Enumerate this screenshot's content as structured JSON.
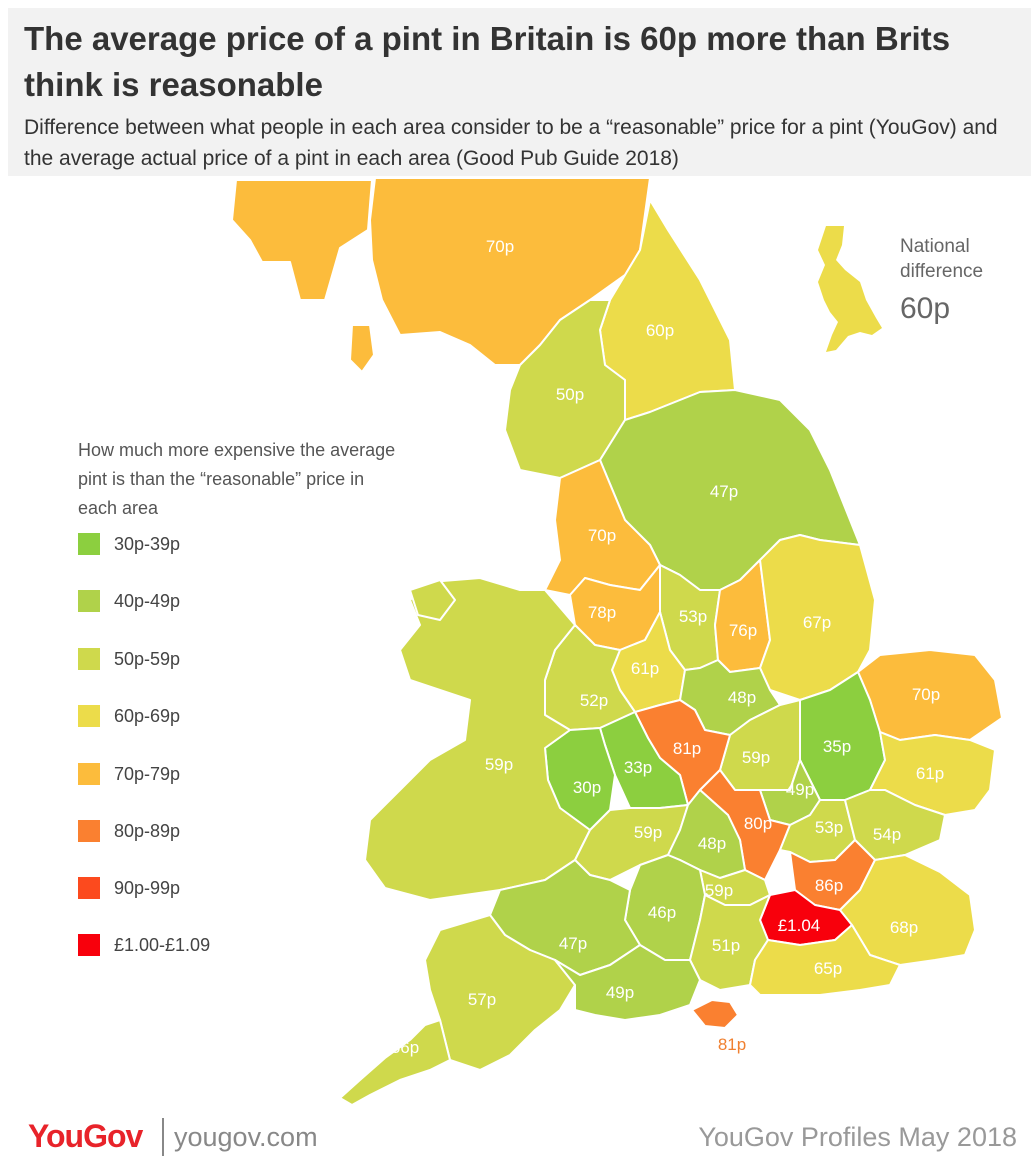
{
  "header": {
    "title": "The average price of a pint in Britain is 60p more than Brits think is reasonable",
    "subtitle": "Difference between what people in each area consider to be a “reasonable” price for a pint (YouGov) and the average actual price of a pint in each area (Good Pub Guide 2018)"
  },
  "national": {
    "label": "National difference",
    "value": "60p"
  },
  "legend": {
    "title": "How much more expensive the average pint is than the “reasonable” price in each area",
    "items": [
      {
        "label": "30p-39p",
        "color": "#8ccf3f"
      },
      {
        "label": "40p-49p",
        "color": "#b0d24a"
      },
      {
        "label": "50p-59p",
        "color": "#cfd94c"
      },
      {
        "label": "60p-69p",
        "color": "#ecdc4a"
      },
      {
        "label": "70p-79p",
        "color": "#fcbc3c"
      },
      {
        "label": "80p-89p",
        "color": "#fa8030"
      },
      {
        "label": "90p-99p",
        "color": "#fc4a1e"
      },
      {
        "label": "£1.00-£1.09",
        "color": "#f8000c"
      }
    ]
  },
  "regions": [
    {
      "label": "70p",
      "band": 4
    },
    {
      "label": "60p",
      "band": 3
    },
    {
      "label": "50p",
      "band": 2
    },
    {
      "label": "47p",
      "band": 1
    },
    {
      "label": "70p",
      "band": 4
    },
    {
      "label": "78p",
      "band": 4
    },
    {
      "label": "53p",
      "band": 2
    },
    {
      "label": "76p",
      "band": 4
    },
    {
      "label": "67p",
      "band": 3
    },
    {
      "label": "61p",
      "band": 3
    },
    {
      "label": "52p",
      "band": 2
    },
    {
      "label": "48p",
      "band": 1
    },
    {
      "label": "70p",
      "band": 4
    },
    {
      "label": "59p",
      "band": 2
    },
    {
      "label": "81p",
      "band": 5
    },
    {
      "label": "33p",
      "band": 0
    },
    {
      "label": "30p",
      "band": 0
    },
    {
      "label": "59p",
      "band": 2
    },
    {
      "label": "35p",
      "band": 0
    },
    {
      "label": "49p",
      "band": 1
    },
    {
      "label": "61p",
      "band": 3
    },
    {
      "label": "80p",
      "band": 5
    },
    {
      "label": "53p",
      "band": 2
    },
    {
      "label": "54p",
      "band": 2
    },
    {
      "label": "59p",
      "band": 2
    },
    {
      "label": "48p",
      "band": 1
    },
    {
      "label": "86p",
      "band": 5
    },
    {
      "label": "59p",
      "band": 2
    },
    {
      "label": "46p",
      "band": 1
    },
    {
      "label": "£1.04",
      "band": 7
    },
    {
      "label": "68p",
      "band": 3
    },
    {
      "label": "47p",
      "band": 1
    },
    {
      "label": "51p",
      "band": 2
    },
    {
      "label": "65p",
      "band": 3
    },
    {
      "label": "57p",
      "band": 2
    },
    {
      "label": "49p",
      "band": 1
    },
    {
      "label": "81p",
      "band": 5
    },
    {
      "label": "56p",
      "band": 2
    }
  ],
  "footer": {
    "brand": "YouGov",
    "url": "yougov.com",
    "credit": "YouGov Profiles May 2018"
  }
}
